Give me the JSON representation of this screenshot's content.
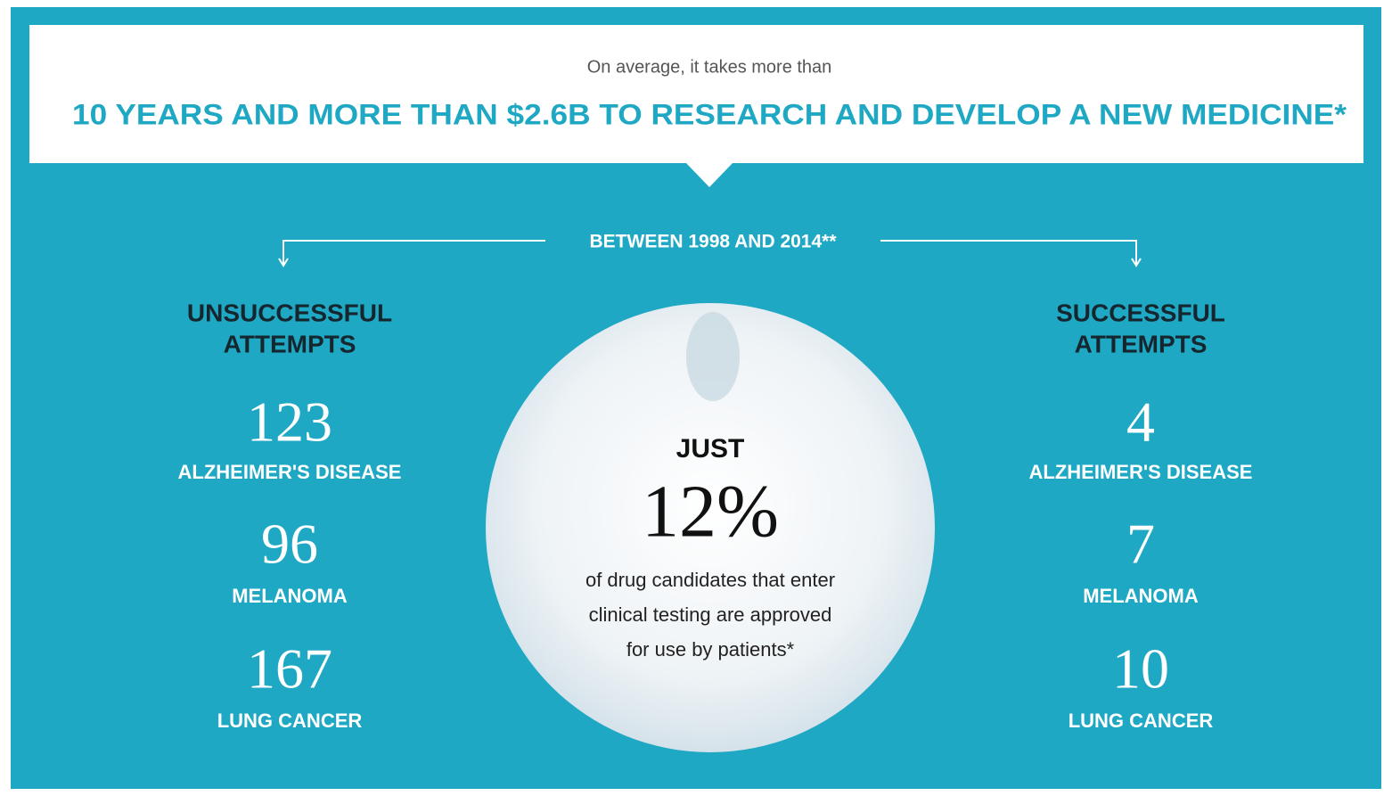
{
  "header": {
    "intro": "On average, it takes more than",
    "headline": "10 YEARS AND MORE THAN $2.6B TO RESEARCH AND DEVELOP A NEW MEDICINE*"
  },
  "period": "BETWEEN 1998 AND 2014**",
  "columns": [
    {
      "heading": [
        "UNSUCCESSFUL",
        "ATTEMPTS"
      ],
      "items": [
        {
          "number": "123",
          "label": "ALZHEIMER'S DISEASE"
        },
        {
          "number": "96",
          "label": "MELANOMA"
        },
        {
          "number": "167",
          "label": "LUNG CANCER"
        }
      ]
    },
    {
      "heading": [
        "SUCCESSFUL",
        "ATTEMPTS"
      ],
      "items": [
        {
          "number": "4",
          "label": "ALZHEIMER'S DISEASE"
        },
        {
          "number": "7",
          "label": "MELANOMA"
        },
        {
          "number": "10",
          "label": "LUNG CANCER"
        }
      ]
    }
  ],
  "center": {
    "lead": "JUST",
    "figure": "12%",
    "text": [
      "of drug candidates that enter",
      "clinical testing are approved",
      "for use by patients*"
    ]
  }
}
